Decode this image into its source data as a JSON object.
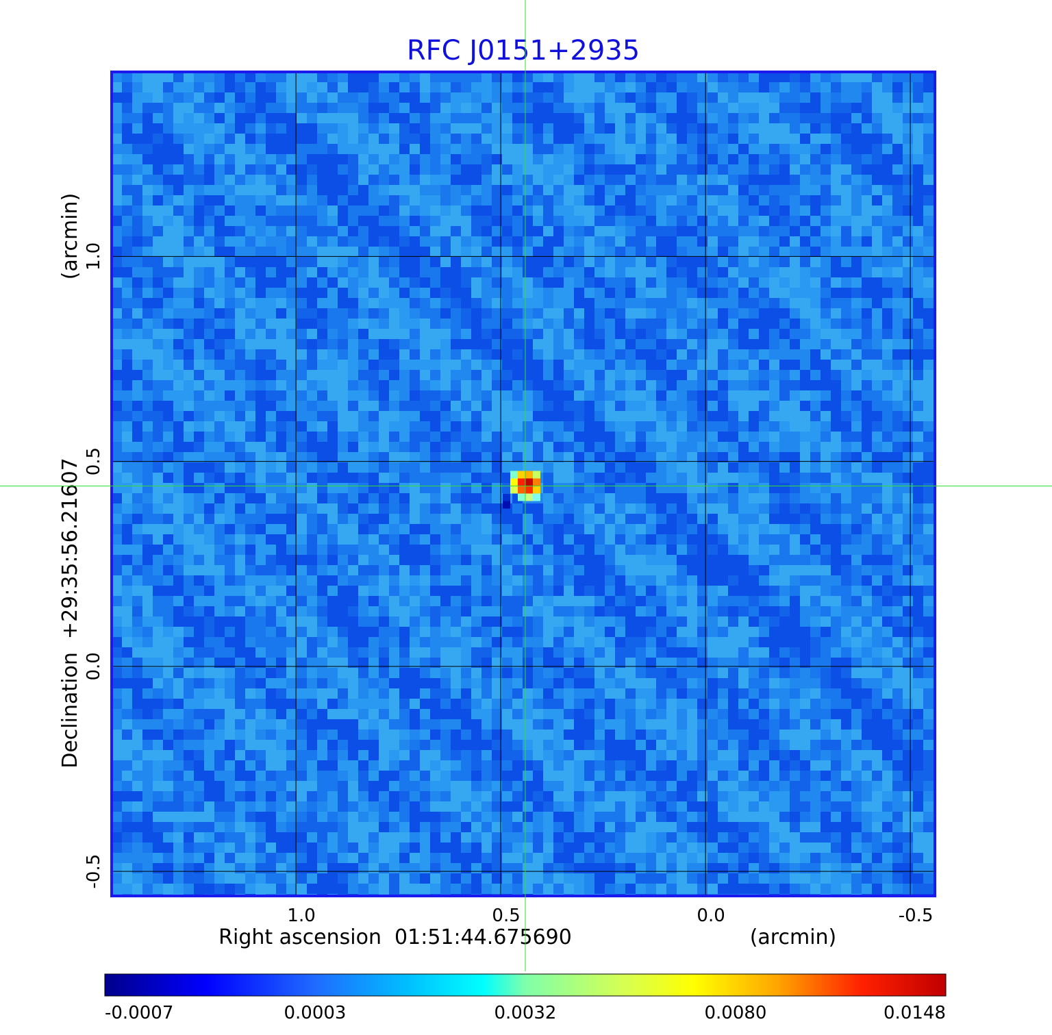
{
  "chart_data": {
    "type": "heatmap",
    "title": "RFC J0151+2935",
    "xlabel": "Right ascension  01:51:44.675690",
    "xunit": "(arcmin)",
    "ylabel": "Declination  +29:35:56.21607",
    "yunit": "(arcmin)",
    "xlim": [
      1.45,
      -0.56
    ],
    "ylim": [
      -0.56,
      1.45
    ],
    "x_ticks": [
      1.0,
      0.5,
      0.0,
      -0.5
    ],
    "x_tick_labels": [
      "1.0",
      "0.5",
      "0.0",
      "-0.5"
    ],
    "y_ticks": [
      -0.5,
      0.0,
      0.5,
      1.0
    ],
    "y_tick_labels": [
      "-0.5",
      "0.0",
      "0.5",
      "1.0"
    ],
    "grid": true,
    "crosshair": {
      "x": 0.44,
      "y": 0.44
    },
    "source_peak": {
      "x": 0.44,
      "y": 0.44,
      "value": 0.0148
    },
    "colorbar": {
      "tick_values": [
        -0.0007,
        0.0003,
        0.0032,
        0.008,
        0.0148
      ],
      "tick_labels": [
        "-0.0007",
        "0.0003",
        "0.0032",
        "0.0080",
        "0.0148"
      ],
      "colormap": "jet"
    },
    "colors": {
      "title": "#1010dd",
      "frame": "#1a1aee",
      "grid": "#000000",
      "crosshair": "#33dd33",
      "background_pixel": "#1a78ee"
    }
  }
}
